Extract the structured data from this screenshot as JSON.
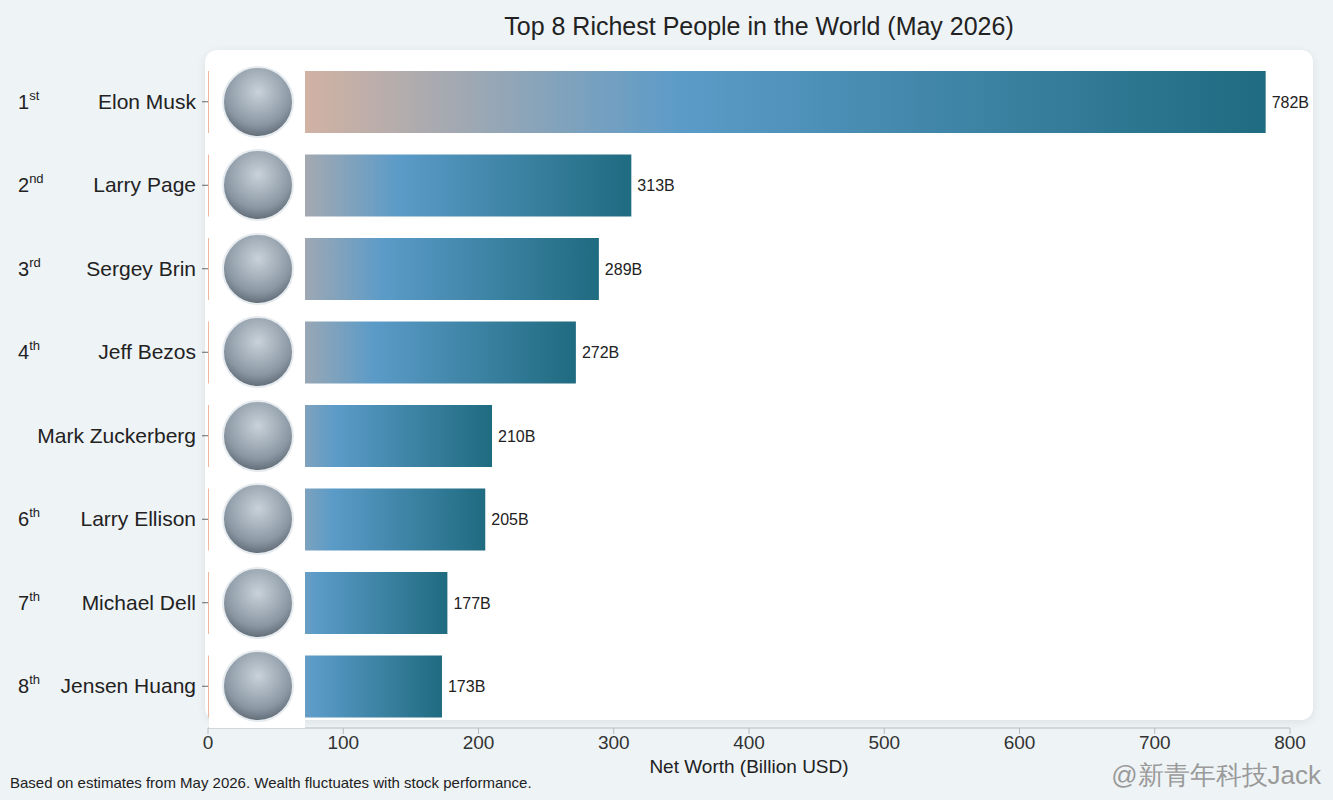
{
  "chart_data": {
    "type": "bar",
    "title": "Top 8 Richest People in the World (May 2026)",
    "orientation": "horizontal",
    "categories": [
      "Elon Musk",
      "Larry Page",
      "Sergey Brin",
      "Jeff Bezos",
      "Mark Zuckerberg",
      "Larry Ellison",
      "Michael Dell",
      "Jensen Huang"
    ],
    "ranks": [
      "1st",
      "2nd",
      "3rd",
      "4th",
      null,
      "6th",
      "7th",
      "8th"
    ],
    "values": [
      782,
      313,
      289,
      272,
      210,
      205,
      177,
      173
    ],
    "value_labels": [
      "782B",
      "313B",
      "289B",
      "272B",
      "210B",
      "205B",
      "177B",
      "173B"
    ],
    "data_labels": true,
    "color": "#1f6b80",
    "xlabel": "Net Worth (Billion USD)",
    "xlim": [
      0,
      800
    ],
    "xticks": [
      0,
      100,
      200,
      300,
      400,
      500,
      600,
      700,
      800
    ],
    "grid": false,
    "footnote": "Based on estimates from May 2026. Wealth fluctuates with stock performance.",
    "watermark": "@新青年科技Jack"
  }
}
